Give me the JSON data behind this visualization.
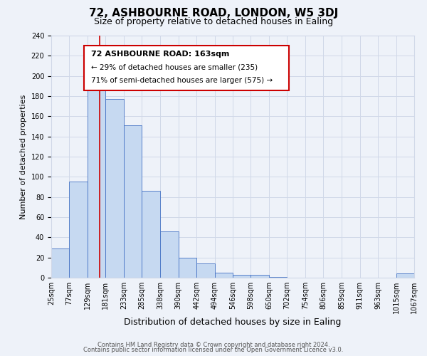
{
  "title": "72, ASHBOURNE ROAD, LONDON, W5 3DJ",
  "subtitle": "Size of property relative to detached houses in Ealing",
  "xlabel": "Distribution of detached houses by size in Ealing",
  "ylabel": "Number of detached properties",
  "bin_edges": [
    25,
    77,
    129,
    181,
    233,
    285,
    338,
    390,
    442,
    494,
    546,
    598,
    650,
    702,
    754,
    806,
    859,
    911,
    963,
    1015,
    1067
  ],
  "bin_heights": [
    29,
    95,
    188,
    177,
    151,
    86,
    46,
    20,
    14,
    5,
    3,
    3,
    1,
    0,
    0,
    0,
    0,
    0,
    0,
    4
  ],
  "bar_facecolor": "#c6d9f1",
  "bar_edgecolor": "#4472c4",
  "grid_color": "#d0d8e8",
  "background_color": "#eef2f9",
  "vline_x": 163,
  "vline_color": "#cc0000",
  "annotation_line1": "72 ASHBOURNE ROAD: 163sqm",
  "annotation_line2": "← 29% of detached houses are smaller (235)",
  "annotation_line3": "71% of semi-detached houses are larger (575) →",
  "ylim": [
    0,
    240
  ],
  "yticks": [
    0,
    20,
    40,
    60,
    80,
    100,
    120,
    140,
    160,
    180,
    200,
    220,
    240
  ],
  "tick_labels": [
    "25sqm",
    "77sqm",
    "129sqm",
    "181sqm",
    "233sqm",
    "285sqm",
    "338sqm",
    "390sqm",
    "442sqm",
    "494sqm",
    "546sqm",
    "598sqm",
    "650sqm",
    "702sqm",
    "754sqm",
    "806sqm",
    "859sqm",
    "911sqm",
    "963sqm",
    "1015sqm",
    "1067sqm"
  ],
  "footer_line1": "Contains HM Land Registry data © Crown copyright and database right 2024.",
  "footer_line2": "Contains public sector information licensed under the Open Government Licence v3.0.",
  "title_fontsize": 11,
  "subtitle_fontsize": 9,
  "xlabel_fontsize": 9,
  "ylabel_fontsize": 8,
  "tick_fontsize": 7,
  "annotation_fontsize": 8,
  "footer_fontsize": 6
}
